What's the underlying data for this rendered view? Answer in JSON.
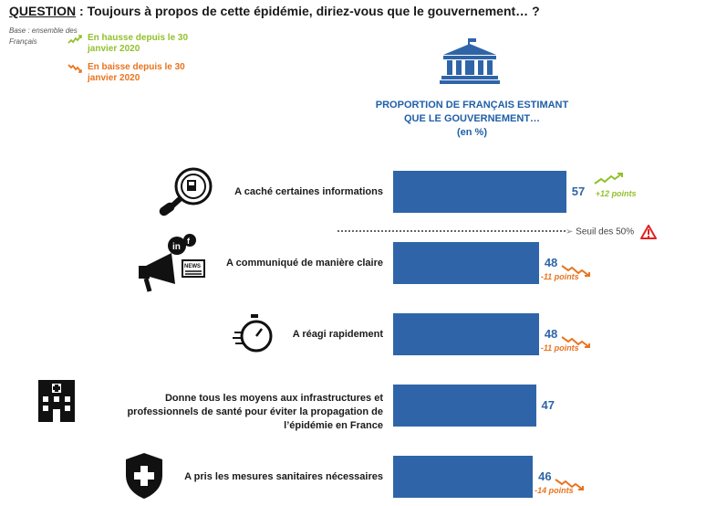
{
  "question": {
    "prefix": "QUESTION",
    "text": " : Toujours à propos de cette épidémie, diriez-vous que le gouvernement… ?"
  },
  "base": "Base : ensemble des Français",
  "legend": {
    "up": "En hausse depuis le 30 janvier 2020",
    "down": "En baisse depuis le 30 janvier 2020",
    "up_color": "#92c02c",
    "down_color": "#e8741f"
  },
  "proportion_title": {
    "line1": "PROPORTION DE FRANÇAIS ESTIMANT",
    "line2": "QUE LE GOUVERNEMENT…",
    "line3": "(en %)"
  },
  "threshold_label": "Seuil des 50%",
  "chart_data": {
    "type": "bar",
    "orientation": "horizontal",
    "categories": [
      "A caché certaines informations",
      "A communiqué de manière claire",
      "A réagi rapidement",
      "Donne tous les moyens aux infrastructures et professionnels de santé pour éviter la propagation de l’épidémie en France",
      "A pris les mesures sanitaires nécessaires"
    ],
    "values": [
      57,
      48,
      48,
      47,
      46
    ],
    "changes": [
      "+12 points",
      "-11 points",
      "-11 points",
      "",
      "-14 points"
    ],
    "trends": [
      "up",
      "down",
      "down",
      "none",
      "down"
    ],
    "threshold": 50,
    "bar_color": "#2f65a8",
    "icons": [
      "magnifier-icon",
      "megaphone-icon",
      "stopwatch-icon",
      "hospital-icon",
      "shield-cross-icon"
    ]
  }
}
